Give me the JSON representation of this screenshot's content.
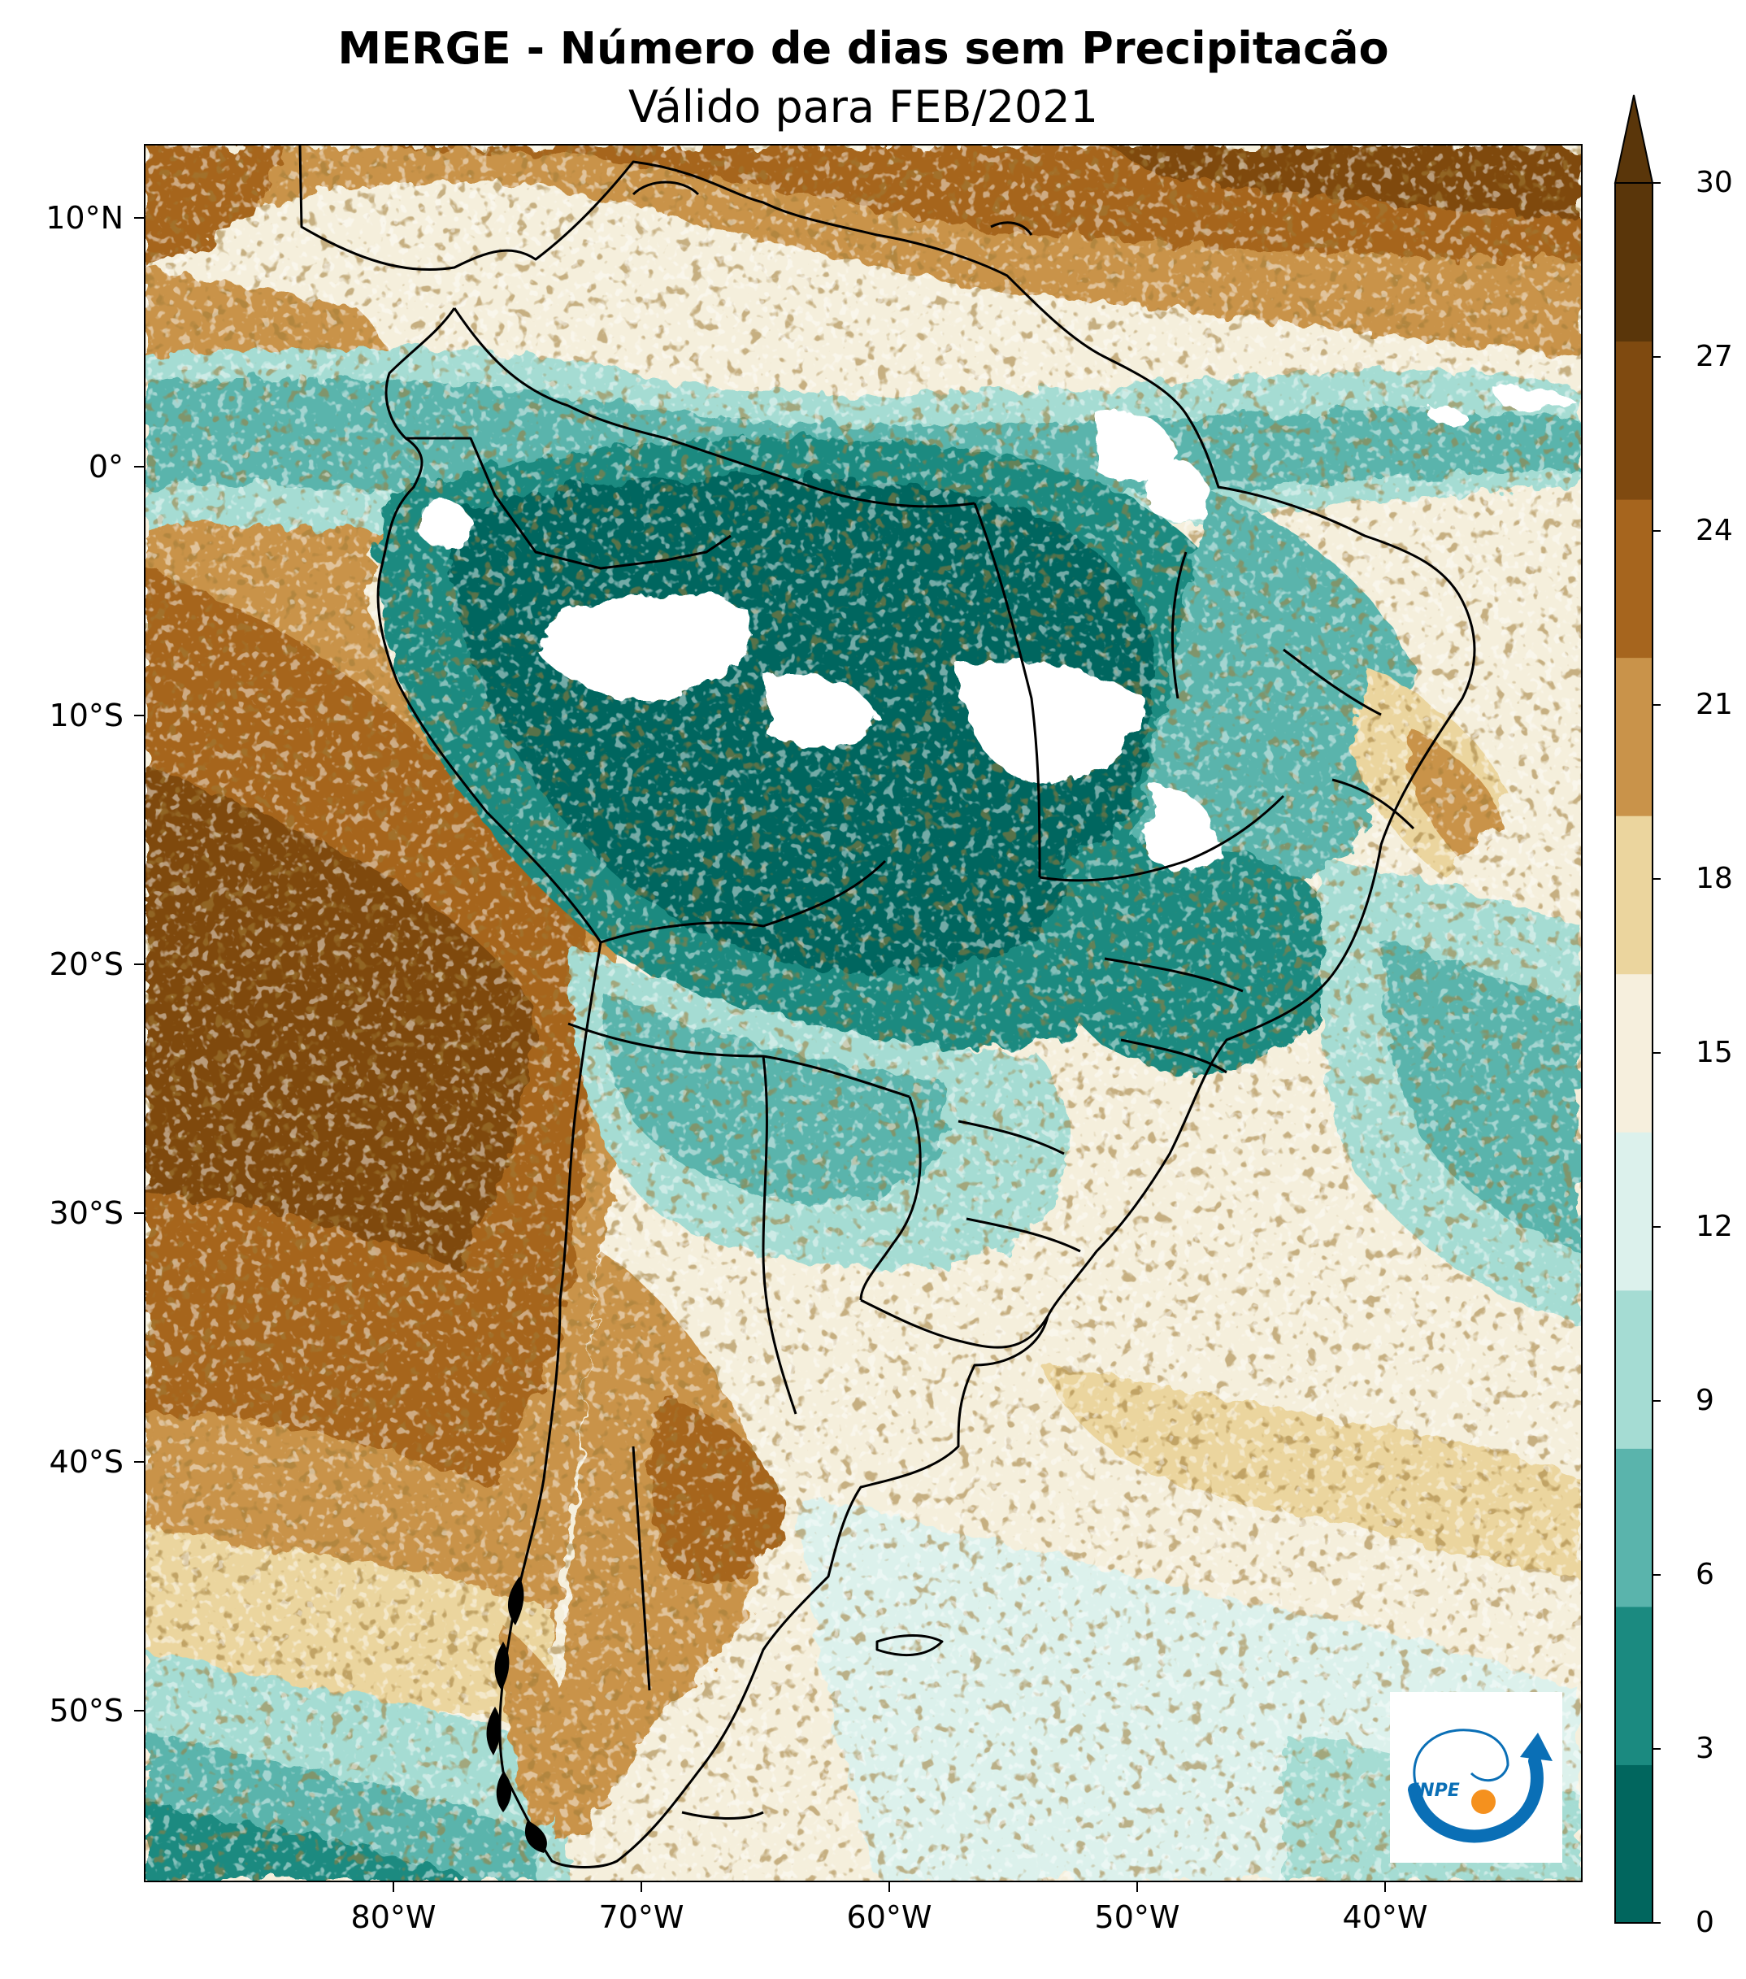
{
  "title": {
    "line1": "MERGE - Número de dias sem Precipitacão",
    "line2": "Válido para FEB/2021"
  },
  "axes": {
    "lat_labels": [
      "10°N",
      "0°",
      "10°S",
      "20°S",
      "30°S",
      "40°S",
      "50°S"
    ],
    "lon_labels": [
      "80°W",
      "70°W",
      "60°W",
      "50°W",
      "40°W"
    ]
  },
  "colorbar": {
    "ticks": [
      "0",
      "3",
      "6",
      "9",
      "12",
      "15",
      "18",
      "21",
      "24",
      "27",
      "30"
    ],
    "colors": [
      "#01665e",
      "#1b8a80",
      "#5ab4ac",
      "#a5dcd3",
      "#dcf1ec",
      "#f6efdd",
      "#ebd59e",
      "#c9934a",
      "#a6651e",
      "#7f4a10",
      "#5a360a"
    ],
    "extend": "max"
  },
  "map": {
    "projection": "PlateCarree",
    "lon_range": [
      -90,
      -32
    ],
    "lat_range": [
      -56,
      13
    ],
    "no_data_color": "#ffffff",
    "border_color": "#000000"
  },
  "logo": {
    "text": "INPE",
    "colors": [
      "#0a6fb6",
      "#f5911e"
    ]
  }
}
